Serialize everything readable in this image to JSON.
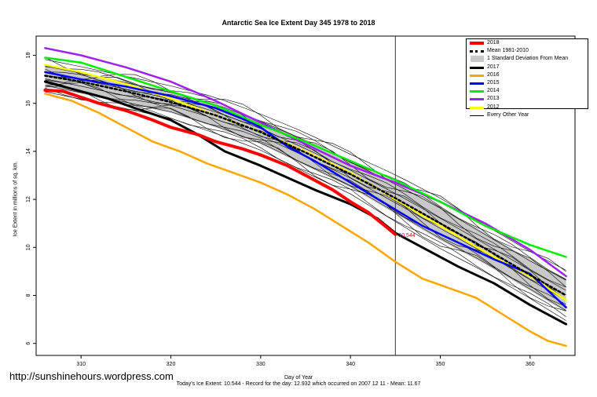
{
  "chart_data": {
    "type": "line",
    "title": "Antarctic Sea Ice Extent Day 345 1978 to 2018",
    "xlabel": "Day of Year",
    "ylabel": "Ice Extent in millions of sq. km.",
    "xlim": [
      305,
      365
    ],
    "ylim": [
      5.5,
      18.8
    ],
    "x_ticks": [
      310,
      320,
      330,
      340,
      350,
      360
    ],
    "y_ticks": [
      6,
      8,
      10,
      12,
      14,
      16,
      18
    ],
    "current_day": 345,
    "current_label": "10.544",
    "legend_position": "top-right",
    "std_band": {
      "x": [
        306,
        310,
        315,
        320,
        325,
        330,
        335,
        340,
        345,
        350,
        355,
        360,
        364
      ],
      "upper": [
        17.6,
        17.3,
        16.9,
        16.5,
        16.0,
        15.3,
        14.5,
        13.6,
        12.7,
        11.7,
        10.6,
        9.5,
        8.7
      ],
      "lower": [
        16.7,
        16.4,
        16.0,
        15.6,
        15.0,
        14.3,
        13.4,
        12.5,
        11.4,
        10.3,
        9.3,
        8.2,
        7.3
      ]
    },
    "series": [
      {
        "name": "2018",
        "color": "#ff0000",
        "width": 4,
        "x": [
          306,
          308,
          310,
          312,
          315,
          318,
          320,
          323,
          325,
          328,
          330,
          333,
          335,
          338,
          340,
          342,
          344,
          345
        ],
        "y": [
          16.55,
          16.5,
          16.25,
          16.0,
          15.7,
          15.3,
          15.0,
          14.7,
          14.4,
          14.1,
          13.85,
          13.4,
          13.0,
          12.4,
          11.9,
          11.45,
          10.85,
          10.54
        ]
      },
      {
        "name": "Mean 1981-2010",
        "color": "#000000",
        "width": 2.5,
        "dash": "3,3",
        "x": [
          306,
          310,
          315,
          320,
          325,
          330,
          335,
          340,
          345,
          350,
          355,
          360,
          364
        ],
        "y": [
          17.15,
          16.9,
          16.5,
          16.05,
          15.5,
          14.8,
          13.95,
          13.05,
          12.05,
          11.0,
          9.95,
          8.85,
          8.0
        ]
      },
      {
        "name": "2017",
        "color": "#000000",
        "width": 3,
        "x": [
          306,
          308,
          310,
          313,
          316,
          320,
          323,
          326,
          330,
          333,
          336,
          340,
          343,
          345,
          348,
          352,
          356,
          360,
          364
        ],
        "y": [
          16.9,
          16.7,
          16.5,
          16.2,
          15.8,
          15.3,
          14.7,
          14.0,
          13.4,
          12.9,
          12.4,
          11.8,
          11.2,
          10.6,
          10.0,
          9.2,
          8.5,
          7.6,
          6.8
        ]
      },
      {
        "name": "2016",
        "color": "#ffa500",
        "width": 2.5,
        "x": [
          306,
          309,
          312,
          315,
          318,
          321,
          324,
          327,
          330,
          333,
          336,
          339,
          342,
          345,
          348,
          351,
          354,
          357,
          360,
          362,
          364
        ],
        "y": [
          16.4,
          16.1,
          15.6,
          15.0,
          14.4,
          14.0,
          13.5,
          13.1,
          12.7,
          12.2,
          11.6,
          10.9,
          10.2,
          9.4,
          8.7,
          8.3,
          7.9,
          7.2,
          6.5,
          6.1,
          5.9
        ]
      },
      {
        "name": "2015",
        "color": "#0000ff",
        "width": 2.5,
        "x": [
          306,
          310,
          315,
          320,
          325,
          328,
          330,
          333,
          336,
          340,
          344,
          348,
          352,
          356,
          360,
          364
        ],
        "y": [
          17.3,
          17.0,
          16.7,
          16.3,
          15.8,
          15.35,
          15.0,
          14.2,
          13.6,
          12.7,
          11.8,
          10.9,
          10.2,
          9.5,
          8.9,
          7.5
        ]
      },
      {
        "name": "2014",
        "color": "#00ee00",
        "width": 2.5,
        "x": [
          306,
          310,
          315,
          320,
          325,
          330,
          335,
          340,
          345,
          350,
          355,
          360,
          364
        ],
        "y": [
          17.9,
          17.7,
          17.1,
          16.5,
          15.9,
          15.1,
          14.4,
          13.6,
          12.8,
          11.9,
          10.9,
          10.1,
          9.6
        ]
      },
      {
        "name": "2013",
        "color": "#a020f0",
        "width": 2.5,
        "x": [
          306,
          310,
          315,
          320,
          325,
          330,
          335,
          340,
          345,
          350,
          355,
          360,
          364
        ],
        "y": [
          18.3,
          18.0,
          17.5,
          16.9,
          16.1,
          15.2,
          14.3,
          13.4,
          12.7,
          11.9,
          11.0,
          9.9,
          8.8
        ]
      },
      {
        "name": "2012",
        "color": "#ffff00",
        "width": 2.5,
        "x": [
          306,
          310,
          315,
          320,
          325,
          330,
          335,
          340,
          345,
          350,
          355,
          360,
          364
        ],
        "y": [
          17.6,
          17.3,
          16.8,
          16.2,
          15.5,
          14.8,
          14.0,
          13.1,
          12.0,
          10.9,
          9.8,
          8.8,
          7.8
        ]
      }
    ],
    "legend": [
      "2018",
      "Mean 1981-2010",
      "1 Standard Deviation From Mean",
      "2017",
      "2016",
      "2015",
      "2014",
      "2013",
      "2012",
      "Every Other Year"
    ]
  },
  "watermark": "http://sunshinehours.wordpress.com",
  "footer": "Today's Ice Extent: 10.544  - Record for the day: 12.932 which occurred on 2007 12 11  - Mean: 11.67"
}
